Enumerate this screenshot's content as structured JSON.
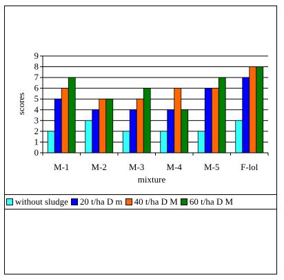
{
  "chart_data": {
    "type": "bar",
    "title": "",
    "xlabel": "mixture",
    "ylabel": "scores",
    "ylim": [
      0,
      9
    ],
    "yticks": [
      0,
      1,
      2,
      3,
      4,
      5,
      6,
      7,
      8,
      9
    ],
    "grid": "horizontal",
    "legend_position": "bottom",
    "categories": [
      "M-1",
      "M-2",
      "M-3",
      "M-4",
      "M-5",
      "F-lol"
    ],
    "series": [
      {
        "name": "without sludge",
        "color": "#33ffff",
        "values": [
          2,
          3,
          2,
          2,
          2,
          3
        ]
      },
      {
        "name": "20 t/ha D m",
        "color": "#0000ff",
        "values": [
          5,
          4,
          4,
          4,
          6,
          7
        ]
      },
      {
        "name": "40 t/ha D M",
        "color": "#ff6600",
        "values": [
          6,
          5,
          5,
          6,
          6,
          8
        ]
      },
      {
        "name": "60 t/ha D M",
        "color": "#007f00",
        "values": [
          7,
          5,
          6,
          4,
          7,
          8
        ]
      }
    ]
  }
}
